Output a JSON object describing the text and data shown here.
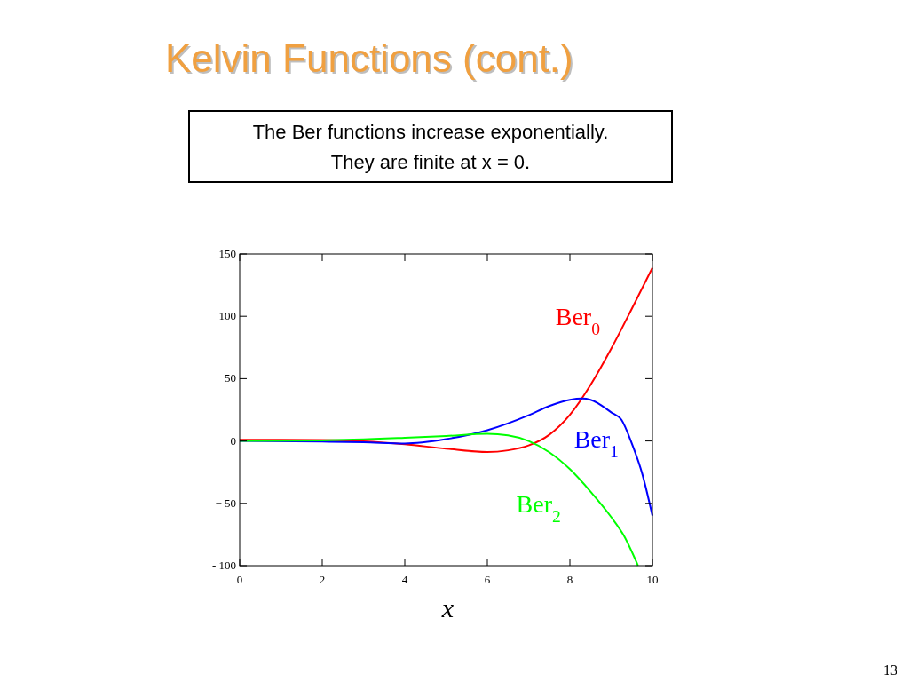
{
  "chart_data": {
    "type": "line",
    "title": "Kelvin Functions (cont.)",
    "xlabel": "x",
    "annotations": [
      "The Ber functions increase exponentially.",
      "They are finite at x = 0.",
      "13"
    ],
    "xlim": [
      0,
      10
    ],
    "xticks": [
      0,
      2,
      4,
      6,
      8,
      10
    ],
    "ylim": [
      -100,
      150
    ],
    "yticks": [
      {
        "value": -100,
        "label": "- 100"
      },
      {
        "value": -50,
        "label": "− 50"
      },
      0,
      50,
      100,
      150
    ],
    "series": [
      {
        "name": "Ber$_{0}$",
        "color": "#ff0000",
        "x": [
          0,
          1,
          2,
          3,
          4,
          5,
          6,
          6.5,
          7,
          7.5,
          8,
          8.5,
          9,
          9.5,
          10
        ],
        "values": [
          1,
          0.98,
          0.75,
          -0.2,
          -2.6,
          -6.2,
          -8.9,
          -7.5,
          -3.6,
          5,
          21,
          45,
          74,
          106,
          139
        ]
      },
      {
        "name": "Ber$_{1}$",
        "color": "#0000ff",
        "x": [
          0,
          2,
          3,
          4,
          5,
          6,
          7,
          7.5,
          8,
          8.3,
          8.5,
          9,
          9.25,
          9.5,
          9.75,
          10
        ],
        "values": [
          0,
          -0.5,
          -1,
          -2,
          1.5,
          8.6,
          20.6,
          28,
          33,
          34,
          33,
          23,
          17,
          -2,
          -26,
          -60
        ]
      },
      {
        "name": "Ber$_{2}$",
        "color": "#00ff00",
        "x": [
          0,
          2,
          4,
          5,
          6,
          6.5,
          7,
          7.5,
          8,
          8.5,
          9,
          9.3,
          9.65
        ],
        "values": [
          0,
          0.5,
          2.6,
          4,
          5.8,
          4.5,
          0,
          -9,
          -22.6,
          -40.6,
          -61,
          -75.5,
          -100
        ]
      }
    ]
  }
}
